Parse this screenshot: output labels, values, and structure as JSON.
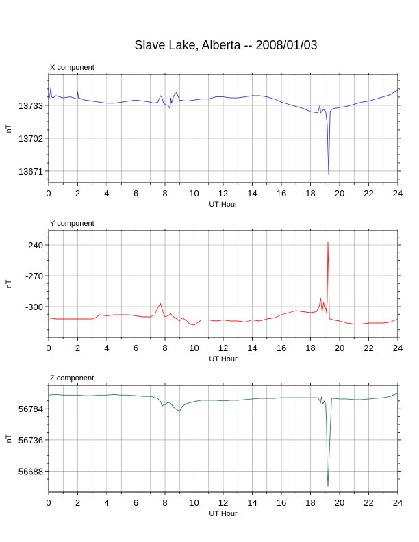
{
  "title": "Slave Lake, Alberta -- 2008/01/03",
  "chart_data": [
    {
      "type": "line",
      "panel_label": "X component",
      "xlabel": "UT Hour",
      "ylabel": "nT",
      "xlim": [
        0,
        24
      ],
      "ylim": [
        13660,
        13762
      ],
      "xticks": [
        "0",
        "2",
        "4",
        "6",
        "8",
        "10",
        "12",
        "14",
        "16",
        "18",
        "20",
        "22",
        "24"
      ],
      "yticks": [
        {
          "value": 13733,
          "label": "13733"
        },
        {
          "value": 13702,
          "label": "13702"
        },
        {
          "value": 13671,
          "label": "13671"
        }
      ],
      "grid": true,
      "color": "#3333dd",
      "x": [
        0,
        0.1,
        0.15,
        0.2,
        0.3,
        0.5,
        1,
        1.5,
        1.95,
        2,
        2.05,
        2.5,
        3,
        3.5,
        4,
        4.5,
        5,
        5.5,
        6,
        6.5,
        7,
        7.2,
        7.5,
        7.7,
        7.8,
        7.9,
        8,
        8.2,
        8.35,
        8.4,
        8.45,
        8.6,
        8.8,
        9,
        9.5,
        10,
        10.5,
        11,
        11.5,
        12,
        12.5,
        13,
        13.5,
        14,
        14.5,
        15,
        15.5,
        16,
        16.5,
        17,
        17.5,
        18,
        18.5,
        18.65,
        18.7,
        18.75,
        18.9,
        19.05,
        19.15,
        19.2,
        19.25,
        19.3,
        19.35,
        19.45,
        19.6,
        20,
        20.5,
        21,
        21.5,
        22,
        22.5,
        23,
        23.5,
        23.8,
        24
      ],
      "y": [
        13737,
        13744,
        13750,
        13741,
        13740,
        13742,
        13740,
        13741,
        13739,
        13746,
        13740,
        13738,
        13737,
        13736,
        13735,
        13735,
        13736,
        13737,
        13738,
        13737,
        13736,
        13735,
        13736,
        13742,
        13740,
        13735,
        13734,
        13733,
        13730,
        13740,
        13735,
        13742,
        13745,
        13738,
        13737,
        13738,
        13739,
        13739,
        13741,
        13741,
        13740,
        13740,
        13741,
        13742,
        13742,
        13741,
        13739,
        13736,
        13734,
        13732,
        13730,
        13727,
        13726,
        13733,
        13726,
        13727,
        13729,
        13727,
        13715,
        13690,
        13668,
        13700,
        13727,
        13729,
        13730,
        13731,
        13732,
        13734,
        13736,
        13737,
        13739,
        13741,
        13743,
        13746,
        13747
      ]
    },
    {
      "type": "line",
      "panel_label": "Y component",
      "xlabel": "UT Hour",
      "ylabel": "nT",
      "xlim": [
        0,
        24
      ],
      "ylim": [
        -330,
        -226
      ],
      "xticks": [
        "0",
        "2",
        "4",
        "6",
        "8",
        "10",
        "12",
        "14",
        "16",
        "18",
        "20",
        "22",
        "24"
      ],
      "yticks": [
        {
          "value": -240,
          "label": "-240"
        },
        {
          "value": -270,
          "label": "-270"
        },
        {
          "value": -300,
          "label": "-300"
        }
      ],
      "grid": true,
      "color": "#ee2222",
      "x": [
        0,
        0.5,
        1,
        1.5,
        2,
        2.5,
        3,
        3.2,
        3.5,
        4,
        4.5,
        5,
        5.5,
        6,
        6.5,
        7,
        7.3,
        7.5,
        7.7,
        7.85,
        8,
        8.2,
        8.4,
        8.6,
        8.8,
        9,
        9.2,
        9.5,
        9.7,
        10,
        10.5,
        11,
        11.5,
        12,
        12.5,
        13,
        13.5,
        14,
        14.5,
        15,
        15.5,
        16,
        16.5,
        17,
        17.5,
        18,
        18.4,
        18.6,
        18.7,
        18.8,
        18.9,
        19,
        19.05,
        19.1,
        19.15,
        19.2,
        19.25,
        19.3,
        19.4,
        19.6,
        20,
        20.5,
        21,
        21.5,
        22,
        22.5,
        23,
        23.5,
        24
      ],
      "y": [
        -311,
        -312,
        -312,
        -312,
        -312,
        -312,
        -312,
        -311,
        -308,
        -309,
        -308,
        -308,
        -308,
        -309,
        -310,
        -310,
        -308,
        -301,
        -297,
        -305,
        -310,
        -309,
        -307,
        -310,
        -312,
        -314,
        -311,
        -314,
        -317,
        -318,
        -313,
        -313,
        -314,
        -313,
        -314,
        -314,
        -315,
        -313,
        -314,
        -312,
        -311,
        -308,
        -306,
        -304,
        -305,
        -306,
        -305,
        -300,
        -292,
        -305,
        -296,
        -303,
        -301,
        -306,
        -295,
        -237,
        -270,
        -312,
        -312,
        -313,
        -314,
        -316,
        -317,
        -317,
        -316,
        -316,
        -316,
        -315,
        -312
      ]
    },
    {
      "type": "line",
      "panel_label": "Z component",
      "xlabel": "UT Hour",
      "ylabel": "nT",
      "xlim": [
        0,
        24
      ],
      "ylim": [
        56656,
        56820
      ],
      "xticks": [
        "0",
        "2",
        "4",
        "6",
        "8",
        "10",
        "12",
        "14",
        "16",
        "18",
        "20",
        "22",
        "24"
      ],
      "yticks": [
        {
          "value": 56784,
          "label": "56784"
        },
        {
          "value": 56736,
          "label": "56736"
        },
        {
          "value": 56688,
          "label": "56688"
        }
      ],
      "grid": true,
      "color": "#2e7d4f",
      "x": [
        0,
        0.5,
        1,
        1.5,
        2,
        2.5,
        3,
        3.5,
        4,
        4.5,
        5,
        5.5,
        6,
        6.5,
        7,
        7.5,
        7.7,
        7.8,
        7.9,
        8,
        8.2,
        8.4,
        8.6,
        8.8,
        9,
        9.2,
        9.5,
        10,
        10.5,
        11,
        11.5,
        12,
        12.5,
        13,
        13.5,
        14,
        14.5,
        15,
        15.5,
        16,
        16.5,
        17,
        17.5,
        18,
        18.5,
        18.65,
        18.7,
        18.75,
        18.85,
        18.95,
        19.05,
        19.1,
        19.15,
        19.2,
        19.3,
        19.45,
        19.6,
        20,
        20.5,
        21,
        21.5,
        22,
        22.5,
        23,
        23.5,
        24
      ],
      "y": [
        56805,
        56806,
        56805,
        56805,
        56805,
        56804,
        56804,
        56805,
        56805,
        56806,
        56805,
        56805,
        56804,
        56803,
        56803,
        56800,
        56795,
        56788,
        56790,
        56790,
        56794,
        56792,
        56786,
        56783,
        56780,
        56788,
        56792,
        56795,
        56797,
        56797,
        56797,
        56796,
        56797,
        56797,
        56798,
        56799,
        56800,
        56800,
        56800,
        56801,
        56801,
        56801,
        56801,
        56801,
        56801,
        56796,
        56793,
        56802,
        56791,
        56796,
        56790,
        56760,
        56690,
        56665,
        56720,
        56800,
        56800,
        56799,
        56799,
        56798,
        56798,
        56799,
        56800,
        56801,
        56803,
        56808
      ]
    }
  ]
}
